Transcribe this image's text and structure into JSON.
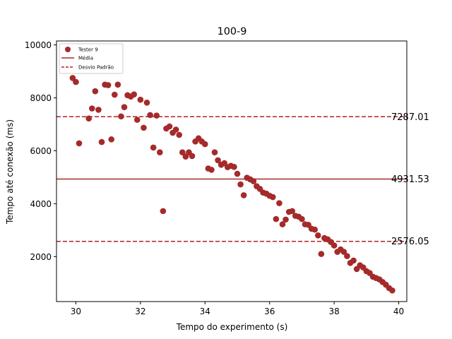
{
  "chart_data": {
    "type": "scatter",
    "title": "100-9",
    "xlabel": "Tempo do experimento (s)",
    "ylabel": "Tempo até conexão (ms)",
    "xlim": [
      29.4,
      40.25
    ],
    "ylim": [
      300,
      10150
    ],
    "xticks": [
      30,
      32,
      34,
      36,
      38,
      40
    ],
    "yticks": [
      2000,
      4000,
      6000,
      8000,
      10000
    ],
    "grid": false,
    "legend_position": "top-left",
    "colors": {
      "points": "#a52a2a",
      "mean": "#a52a2a",
      "std": "#b22222"
    },
    "legend": {
      "series_label": "Tester 9",
      "mean_label": "Média",
      "std_label": "Desvio Padrão"
    },
    "reference_lines": {
      "mean": {
        "value": 4931.53,
        "label": "4931.53"
      },
      "upper_std": {
        "value": 7287.01,
        "label": "7287.01"
      },
      "lower_std": {
        "value": 2576.05,
        "label": "2576.05"
      }
    },
    "series": [
      {
        "name": "Tester 9",
        "x": [
          29.9,
          30.0,
          30.1,
          30.3,
          30.4,
          30.5,
          30.6,
          30.7,
          30.8,
          30.9,
          31.0,
          31.1,
          31.2,
          31.3,
          31.4,
          31.5,
          31.6,
          31.7,
          31.8,
          31.9,
          32.0,
          32.1,
          32.2,
          32.3,
          32.4,
          32.5,
          32.6,
          32.7,
          32.8,
          32.9,
          33.0,
          33.1,
          33.2,
          33.3,
          33.4,
          33.5,
          33.6,
          33.7,
          33.8,
          33.9,
          34.0,
          34.1,
          34.2,
          34.3,
          34.4,
          34.5,
          34.6,
          34.7,
          34.8,
          34.9,
          35.0,
          35.1,
          35.2,
          35.3,
          35.4,
          35.5,
          35.6,
          35.7,
          35.8,
          35.9,
          36.0,
          36.1,
          36.2,
          36.3,
          36.4,
          36.5,
          36.6,
          36.7,
          36.8,
          36.9,
          37.0,
          37.1,
          37.2,
          37.3,
          37.4,
          37.5,
          37.6,
          37.7,
          37.8,
          37.9,
          38.0,
          38.1,
          38.2,
          38.3,
          38.4,
          38.5,
          38.6,
          38.7,
          38.8,
          38.9,
          39.0,
          39.1,
          39.2,
          39.3,
          39.4,
          39.5,
          39.6,
          39.7,
          39.8
        ],
        "y": [
          8750,
          8600,
          6280,
          9050,
          7220,
          7600,
          8250,
          7550,
          6330,
          8500,
          8480,
          6430,
          8120,
          8500,
          7300,
          7650,
          8100,
          8050,
          8130,
          7170,
          7930,
          6870,
          7820,
          7350,
          6120,
          7330,
          5940,
          3720,
          6840,
          6920,
          6680,
          6800,
          6600,
          5940,
          5780,
          5940,
          5800,
          6350,
          6470,
          6350,
          6250,
          5330,
          5280,
          5940,
          5640,
          5470,
          5530,
          5380,
          5430,
          5390,
          5130,
          4730,
          4320,
          4980,
          4920,
          4850,
          4660,
          4560,
          4420,
          4380,
          4300,
          4250,
          3420,
          4020,
          3220,
          3400,
          3690,
          3720,
          3540,
          3510,
          3420,
          3220,
          3200,
          3050,
          3020,
          2800,
          2100,
          2700,
          2650,
          2550,
          2420,
          2180,
          2270,
          2180,
          2020,
          1760,
          1850,
          1530,
          1670,
          1590,
          1450,
          1380,
          1240,
          1190,
          1140,
          1040,
          940,
          810,
          720
        ]
      }
    ]
  }
}
